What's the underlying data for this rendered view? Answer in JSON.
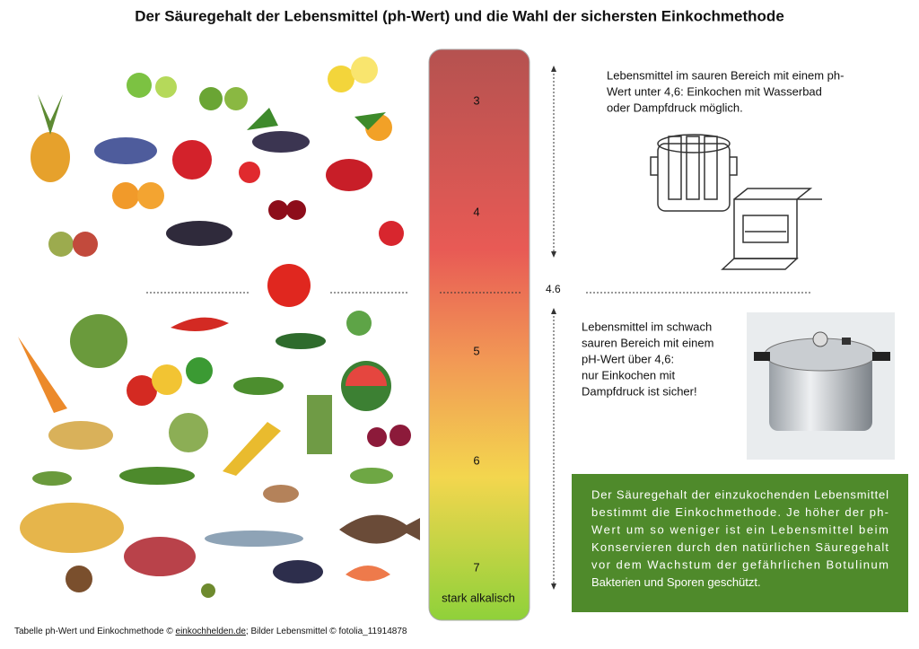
{
  "title": "Der Säuregehalt der Lebensmittel (ph-Wert) und die Wahl der sichersten Einkochmethode",
  "scale": {
    "labels": [
      3,
      4,
      5,
      6,
      7
    ],
    "bottom_label": "stark alkalisch",
    "threshold": 4.6
  },
  "acid_block": {
    "lines": [
      "Lebensmittel im sauren Bereich mit einem ph-",
      "Wert unter 4,6: Einkochen mit Wasserbad",
      "oder Dampfdruck möglich."
    ]
  },
  "low_acid_block": {
    "lines": [
      "Lebensmittel im schwach",
      "sauren Bereich mit einem",
      "pH-Wert über 4,6:",
      "nur Einkochen mit",
      "Dampfdruck ist sicher!"
    ]
  },
  "info_box": {
    "lines": [
      "Der Säuregehalt der einzukochenden Lebensmittel",
      "bestimmt die Einkochmethode. Je höher der ph-",
      "Wert um so weniger ist ein Lebensmittel beim",
      "Konservieren durch den natürlichen Säuregehalt",
      "vor dem Wachstum der gefährlichen Botulinum",
      "Bakterien und Sporen geschützt."
    ]
  },
  "footer": {
    "prefix": "Tabelle ph-Wert und Einkochmethode © ",
    "link": "einkochhelden.de",
    "suffix": "; Bilder Lebensmittel © fotolia_11914878"
  }
}
